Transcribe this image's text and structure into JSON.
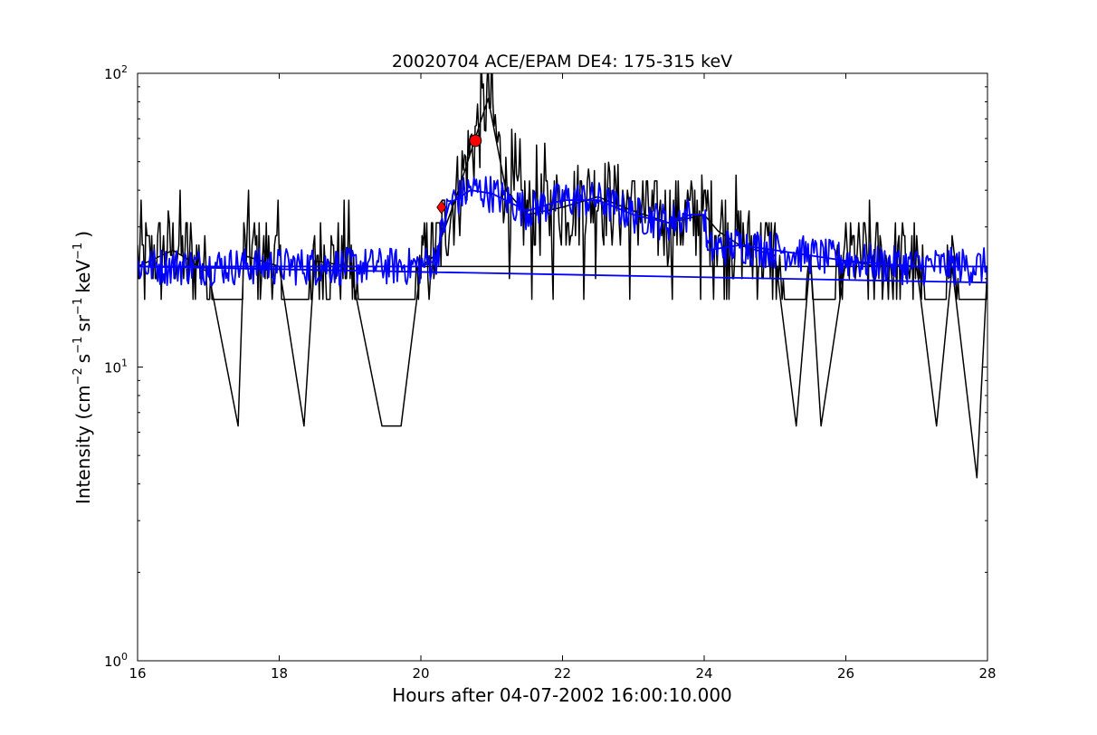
{
  "chart_data": {
    "type": "line",
    "title": "20020704 ACE/EPAM DE4: 175-315 keV",
    "xlabel": "Hours after 04-07-2002 16:00:10.000",
    "ylabel": {
      "prefix": "Intensity (cm",
      "sup1": "−2",
      "mid1": "s",
      "sup2": "−1",
      "mid2": "sr",
      "sup3": "−1",
      "mid3": "keV",
      "sup4": "−1",
      "suffix": ")"
    },
    "xlim": [
      16,
      28
    ],
    "ylim": [
      1,
      100
    ],
    "yscale": "log",
    "grid": false,
    "x_ticks": [
      {
        "value": 16,
        "label": "16"
      },
      {
        "value": 18,
        "label": "18"
      },
      {
        "value": 20,
        "label": "20"
      },
      {
        "value": 22,
        "label": "22"
      },
      {
        "value": 24,
        "label": "24"
      },
      {
        "value": 26,
        "label": "26"
      },
      {
        "value": 28,
        "label": "28"
      }
    ],
    "y_ticks": [
      {
        "value": 1,
        "base": "10",
        "exp": "0"
      },
      {
        "value": 10,
        "base": "10",
        "exp": "1"
      },
      {
        "value": 100,
        "base": "10",
        "exp": "2"
      }
    ],
    "series": [
      {
        "color": "#000000",
        "style": "raw",
        "description_points": [
          {
            "x": 16.0,
            "y": 22
          },
          {
            "x": 16.5,
            "y": 25
          },
          {
            "x": 17.0,
            "y": 21
          },
          {
            "x": 17.42,
            "y": 6.3
          },
          {
            "x": 17.5,
            "y": 24
          },
          {
            "x": 18.0,
            "y": 22
          },
          {
            "x": 18.35,
            "y": 6.3
          },
          {
            "x": 18.5,
            "y": 23
          },
          {
            "x": 19.0,
            "y": 22
          },
          {
            "x": 19.45,
            "y": 6.3
          },
          {
            "x": 19.72,
            "y": 6.3
          },
          {
            "x": 20.0,
            "y": 22
          },
          {
            "x": 20.2,
            "y": 24
          },
          {
            "x": 20.5,
            "y": 38
          },
          {
            "x": 20.95,
            "y": 82
          },
          {
            "x": 21.2,
            "y": 40
          },
          {
            "x": 21.5,
            "y": 33
          },
          {
            "x": 22.0,
            "y": 35
          },
          {
            "x": 22.5,
            "y": 38
          },
          {
            "x": 23.0,
            "y": 34
          },
          {
            "x": 23.5,
            "y": 31
          },
          {
            "x": 24.0,
            "y": 33
          },
          {
            "x": 24.2,
            "y": 29
          },
          {
            "x": 24.5,
            "y": 26
          },
          {
            "x": 25.0,
            "y": 24
          },
          {
            "x": 25.3,
            "y": 6.3
          },
          {
            "x": 25.5,
            "y": 24
          },
          {
            "x": 25.65,
            "y": 6.3
          },
          {
            "x": 26.0,
            "y": 23
          },
          {
            "x": 26.5,
            "y": 22
          },
          {
            "x": 27.0,
            "y": 22
          },
          {
            "x": 27.28,
            "y": 6.3
          },
          {
            "x": 27.5,
            "y": 22
          },
          {
            "x": 27.85,
            "y": 4.2
          },
          {
            "x": 28.0,
            "y": 22
          }
        ]
      },
      {
        "color": "#0000ff",
        "style": "smoothed",
        "description_points": [
          {
            "x": 16.0,
            "y": 22
          },
          {
            "x": 17.0,
            "y": 22
          },
          {
            "x": 18.0,
            "y": 22
          },
          {
            "x": 19.0,
            "y": 22
          },
          {
            "x": 20.0,
            "y": 22
          },
          {
            "x": 20.2,
            "y": 23
          },
          {
            "x": 20.4,
            "y": 36
          },
          {
            "x": 20.7,
            "y": 40
          },
          {
            "x": 21.0,
            "y": 39
          },
          {
            "x": 21.5,
            "y": 34
          },
          {
            "x": 22.0,
            "y": 37
          },
          {
            "x": 22.5,
            "y": 37
          },
          {
            "x": 23.0,
            "y": 33
          },
          {
            "x": 23.5,
            "y": 31
          },
          {
            "x": 23.8,
            "y": 33
          },
          {
            "x": 24.0,
            "y": 33
          },
          {
            "x": 24.05,
            "y": 25
          },
          {
            "x": 24.5,
            "y": 26
          },
          {
            "x": 25.0,
            "y": 25
          },
          {
            "x": 26.0,
            "y": 23
          },
          {
            "x": 27.0,
            "y": 22
          },
          {
            "x": 28.0,
            "y": 22
          }
        ]
      }
    ],
    "markers": [
      {
        "shape": "circle",
        "x": 20.77,
        "y": 59,
        "color": "#ff0000"
      },
      {
        "shape": "diamond",
        "x": 20.29,
        "y": 35,
        "color": "#ff0000"
      }
    ]
  }
}
